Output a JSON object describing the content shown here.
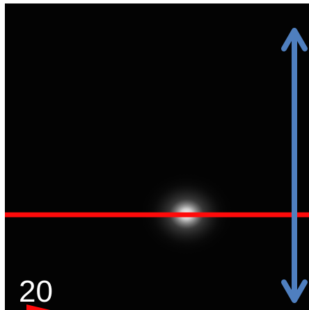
{
  "scale_label": "20"
}
